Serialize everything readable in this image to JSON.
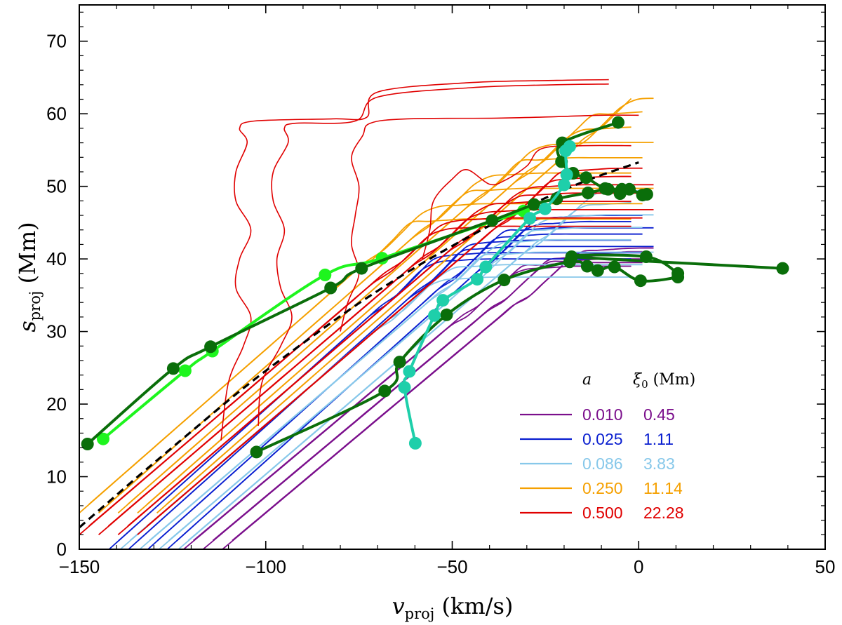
{
  "chart_data": {
    "type": "line",
    "xlim": [
      -150,
      50
    ],
    "ylim": [
      0,
      75
    ],
    "xticks": [
      -150,
      -100,
      -50,
      0,
      50
    ],
    "yticks": [
      0,
      10,
      20,
      30,
      40,
      50,
      60,
      70
    ],
    "xlabel": {
      "symbol": "v",
      "subscript": "proj",
      "unit": "(km/s)"
    },
    "ylabel": {
      "symbol": "s",
      "subscript": "proj",
      "unit": "(Mm)"
    },
    "legend": {
      "position": "bottom-right",
      "header_a": "a",
      "header_xi": {
        "symbol": "ξ",
        "subscript": "0",
        "unit": "(Mm)"
      },
      "entries": [
        {
          "a": "0.010",
          "xi0": "0.45",
          "color": "#7b0f8c"
        },
        {
          "a": "0.025",
          "xi0": "1.11",
          "color": "#0a1fd0"
        },
        {
          "a": "0.086",
          "xi0": "3.83",
          "color": "#87c8ea"
        },
        {
          "a": "0.250",
          "xi0": "11.14",
          "color": "#f5a000"
        },
        {
          "a": "0.500",
          "xi0": "22.28",
          "color": "#e00000"
        }
      ]
    },
    "model_families": [
      {
        "name": "a=0.010",
        "color": "#7b0f8c",
        "start_x": -122,
        "start_y": 0,
        "slope": 0.43,
        "sat_y": [
          38.5,
          41.0
        ],
        "count": 6
      },
      {
        "name": "a=0.025",
        "color": "#0a1fd0",
        "start_x": -142,
        "start_y": 0,
        "slope": 0.46,
        "sat_y": [
          39.5,
          45.5
        ],
        "count": 8
      },
      {
        "name": "a=0.086",
        "color": "#87c8ea",
        "start_x": -139,
        "start_y": 0,
        "slope": 0.44,
        "sat_y": [
          37.0,
          49.0
        ],
        "count": 8
      },
      {
        "name": "a=0.250",
        "color": "#f5a000",
        "start_x": -150,
        "start_y": 5,
        "slope": 0.45,
        "sat_y": [
          45.0,
          64.0
        ],
        "count": 10
      },
      {
        "name": "a=0.500",
        "color": "#e00000",
        "start_x": -150,
        "start_y": 2,
        "slope": 0.44,
        "sat_y": [
          44.0,
          52.0
        ],
        "count": 8
      }
    ],
    "red_wiggle_curves": [
      {
        "name": "red-wiggle-1",
        "color": "#e00000",
        "points": [
          [
            -112,
            15
          ],
          [
            -110,
            23
          ],
          [
            -106,
            28
          ],
          [
            -104,
            32
          ],
          [
            -108,
            36
          ],
          [
            -107,
            40
          ],
          [
            -104,
            44
          ],
          [
            -108,
            48
          ],
          [
            -108,
            52
          ],
          [
            -105,
            56
          ],
          [
            -107,
            58
          ],
          [
            -103,
            59
          ],
          [
            -82,
            59.3
          ],
          [
            -73,
            59.5
          ],
          [
            -70,
            63
          ],
          [
            -45,
            64.3
          ],
          [
            -22,
            64.6
          ],
          [
            -8,
            64.7
          ]
        ]
      },
      {
        "name": "red-wiggle-2",
        "color": "#e00000",
        "points": [
          [
            -102,
            17
          ],
          [
            -101,
            23
          ],
          [
            -96,
            28
          ],
          [
            -93,
            32
          ],
          [
            -96,
            36
          ],
          [
            -97,
            40
          ],
          [
            -95,
            44
          ],
          [
            -98,
            48
          ],
          [
            -98,
            52
          ],
          [
            -94,
            56
          ],
          [
            -95,
            58
          ],
          [
            -92,
            58.7
          ],
          [
            -76,
            59
          ],
          [
            -70,
            62.3
          ],
          [
            -45,
            63.6
          ],
          [
            -22,
            64
          ],
          [
            -8,
            64.1
          ]
        ]
      },
      {
        "name": "red-wiggle-3",
        "color": "#e00000",
        "points": [
          [
            -80,
            30
          ],
          [
            -78,
            34
          ],
          [
            -75,
            38
          ],
          [
            -77,
            42
          ],
          [
            -76,
            46
          ],
          [
            -75,
            50
          ],
          [
            -77,
            54
          ],
          [
            -74,
            57
          ],
          [
            -72,
            58.7
          ],
          [
            -62,
            59.3
          ],
          [
            -38,
            59.4
          ],
          [
            -22,
            59.6
          ],
          [
            -10,
            59.8
          ],
          [
            0,
            59.8
          ]
        ]
      },
      {
        "name": "red-wiggle-4",
        "color": "#e00000",
        "points": [
          [
            -58,
            40
          ],
          [
            -56,
            44
          ],
          [
            -55,
            48
          ],
          [
            -50,
            51
          ],
          [
            -46,
            52.3
          ],
          [
            -40,
            50.3
          ],
          [
            -36,
            50.8
          ],
          [
            -30,
            52.8
          ],
          [
            -26,
            55.2
          ],
          [
            -15,
            55.6
          ],
          [
            -2,
            55.6
          ]
        ]
      }
    ],
    "reference_curve": {
      "name": "reference-dashed",
      "color": "#000000",
      "style": "dashed",
      "points": [
        [
          -150,
          3
        ],
        [
          -135,
          9.7
        ],
        [
          -120,
          16.2
        ],
        [
          -105,
          22.6
        ],
        [
          -90,
          28.4
        ],
        [
          -75,
          33.9
        ],
        [
          -60,
          38.8
        ],
        [
          -45,
          43.2
        ],
        [
          -30,
          47.2
        ],
        [
          -15,
          50.6
        ],
        [
          0,
          53.3
        ]
      ]
    },
    "observed_series": [
      {
        "name": "light-green",
        "color": "#1ef51e",
        "points": [
          [
            -143.6,
            15.2
          ],
          [
            -121.6,
            24.6
          ],
          [
            -114.3,
            27.3
          ],
          [
            -84.1,
            37.8
          ],
          [
            -68.8,
            40.1
          ],
          [
            -30.9,
            46.6
          ]
        ]
      },
      {
        "name": "dark-green-1",
        "color": "#0a6e0a",
        "points": [
          [
            -147.8,
            14.5
          ],
          [
            -124.8,
            24.9
          ],
          [
            -114.8,
            27.9
          ],
          [
            -82.6,
            36.0
          ],
          [
            -74.3,
            38.7
          ],
          [
            -39.3,
            45.3
          ],
          [
            -28.1,
            47.5
          ],
          [
            -22.0,
            48.3
          ],
          [
            -13.6,
            49.1
          ],
          [
            -8.2,
            49.6
          ],
          [
            -5.0,
            49.0
          ],
          [
            -2.5,
            49.6
          ],
          [
            1.0,
            48.8
          ],
          [
            2.2,
            48.9
          ],
          [
            -4.5,
            49.6
          ],
          [
            -9.0,
            49.7
          ],
          [
            -14.1,
            51.2
          ],
          [
            -17.6,
            51.8
          ],
          [
            -20.7,
            53.4
          ],
          [
            -20.5,
            56.0
          ],
          [
            -5.5,
            58.8
          ]
        ]
      },
      {
        "name": "dark-green-2",
        "color": "#0a6e0a",
        "points": [
          [
            -102.5,
            13.4
          ],
          [
            -68.1,
            21.8
          ],
          [
            -64.1,
            25.8
          ],
          [
            -51.5,
            32.3
          ],
          [
            -36.1,
            37.1
          ],
          [
            -18.5,
            39.6
          ],
          [
            -13.8,
            39.0
          ],
          [
            -11.0,
            38.4
          ],
          [
            -6.5,
            38.9
          ],
          [
            0.5,
            37.0
          ],
          [
            10.5,
            37.5
          ],
          [
            10.5,
            38.0
          ],
          [
            2.0,
            40.3
          ],
          [
            -18.0,
            40.3
          ],
          [
            38.6,
            38.7
          ]
        ]
      },
      {
        "name": "teal",
        "color": "#1ecfaa",
        "points": [
          [
            -59.9,
            14.6
          ],
          [
            -62.8,
            22.3
          ],
          [
            -61.5,
            24.5
          ],
          [
            -54.8,
            32.2
          ],
          [
            -52.5,
            34.3
          ],
          [
            -43.3,
            37.2
          ],
          [
            -41.0,
            38.9
          ],
          [
            -29.2,
            45.6
          ],
          [
            -25.1,
            46.9
          ],
          [
            -20.0,
            50.2
          ],
          [
            -19.3,
            51.6
          ],
          [
            -19.6,
            54.9
          ],
          [
            -18.5,
            55.5
          ]
        ]
      }
    ]
  }
}
